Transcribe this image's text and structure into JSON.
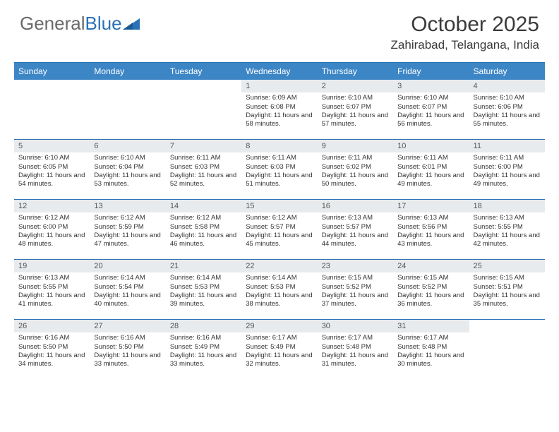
{
  "logo": {
    "word1": "General",
    "word2": "Blue"
  },
  "title": "October 2025",
  "location": "Zahirabad, Telangana, India",
  "colors": {
    "header_bg": "#3d86c6",
    "border": "#2a72b5",
    "date_bg": "#e8ebed",
    "logo_gray": "#6a6a6a",
    "logo_blue": "#2a72b5"
  },
  "day_names": [
    "Sunday",
    "Monday",
    "Tuesday",
    "Wednesday",
    "Thursday",
    "Friday",
    "Saturday"
  ],
  "weeks": [
    [
      {
        "blank": true
      },
      {
        "blank": true
      },
      {
        "blank": true
      },
      {
        "date": "1",
        "sunrise": "Sunrise: 6:09 AM",
        "sunset": "Sunset: 6:08 PM",
        "daylight": "Daylight: 11 hours and 58 minutes."
      },
      {
        "date": "2",
        "sunrise": "Sunrise: 6:10 AM",
        "sunset": "Sunset: 6:07 PM",
        "daylight": "Daylight: 11 hours and 57 minutes."
      },
      {
        "date": "3",
        "sunrise": "Sunrise: 6:10 AM",
        "sunset": "Sunset: 6:07 PM",
        "daylight": "Daylight: 11 hours and 56 minutes."
      },
      {
        "date": "4",
        "sunrise": "Sunrise: 6:10 AM",
        "sunset": "Sunset: 6:06 PM",
        "daylight": "Daylight: 11 hours and 55 minutes."
      }
    ],
    [
      {
        "date": "5",
        "sunrise": "Sunrise: 6:10 AM",
        "sunset": "Sunset: 6:05 PM",
        "daylight": "Daylight: 11 hours and 54 minutes."
      },
      {
        "date": "6",
        "sunrise": "Sunrise: 6:10 AM",
        "sunset": "Sunset: 6:04 PM",
        "daylight": "Daylight: 11 hours and 53 minutes."
      },
      {
        "date": "7",
        "sunrise": "Sunrise: 6:11 AM",
        "sunset": "Sunset: 6:03 PM",
        "daylight": "Daylight: 11 hours and 52 minutes."
      },
      {
        "date": "8",
        "sunrise": "Sunrise: 6:11 AM",
        "sunset": "Sunset: 6:03 PM",
        "daylight": "Daylight: 11 hours and 51 minutes."
      },
      {
        "date": "9",
        "sunrise": "Sunrise: 6:11 AM",
        "sunset": "Sunset: 6:02 PM",
        "daylight": "Daylight: 11 hours and 50 minutes."
      },
      {
        "date": "10",
        "sunrise": "Sunrise: 6:11 AM",
        "sunset": "Sunset: 6:01 PM",
        "daylight": "Daylight: 11 hours and 49 minutes."
      },
      {
        "date": "11",
        "sunrise": "Sunrise: 6:11 AM",
        "sunset": "Sunset: 6:00 PM",
        "daylight": "Daylight: 11 hours and 49 minutes."
      }
    ],
    [
      {
        "date": "12",
        "sunrise": "Sunrise: 6:12 AM",
        "sunset": "Sunset: 6:00 PM",
        "daylight": "Daylight: 11 hours and 48 minutes."
      },
      {
        "date": "13",
        "sunrise": "Sunrise: 6:12 AM",
        "sunset": "Sunset: 5:59 PM",
        "daylight": "Daylight: 11 hours and 47 minutes."
      },
      {
        "date": "14",
        "sunrise": "Sunrise: 6:12 AM",
        "sunset": "Sunset: 5:58 PM",
        "daylight": "Daylight: 11 hours and 46 minutes."
      },
      {
        "date": "15",
        "sunrise": "Sunrise: 6:12 AM",
        "sunset": "Sunset: 5:57 PM",
        "daylight": "Daylight: 11 hours and 45 minutes."
      },
      {
        "date": "16",
        "sunrise": "Sunrise: 6:13 AM",
        "sunset": "Sunset: 5:57 PM",
        "daylight": "Daylight: 11 hours and 44 minutes."
      },
      {
        "date": "17",
        "sunrise": "Sunrise: 6:13 AM",
        "sunset": "Sunset: 5:56 PM",
        "daylight": "Daylight: 11 hours and 43 minutes."
      },
      {
        "date": "18",
        "sunrise": "Sunrise: 6:13 AM",
        "sunset": "Sunset: 5:55 PM",
        "daylight": "Daylight: 11 hours and 42 minutes."
      }
    ],
    [
      {
        "date": "19",
        "sunrise": "Sunrise: 6:13 AM",
        "sunset": "Sunset: 5:55 PM",
        "daylight": "Daylight: 11 hours and 41 minutes."
      },
      {
        "date": "20",
        "sunrise": "Sunrise: 6:14 AM",
        "sunset": "Sunset: 5:54 PM",
        "daylight": "Daylight: 11 hours and 40 minutes."
      },
      {
        "date": "21",
        "sunrise": "Sunrise: 6:14 AM",
        "sunset": "Sunset: 5:53 PM",
        "daylight": "Daylight: 11 hours and 39 minutes."
      },
      {
        "date": "22",
        "sunrise": "Sunrise: 6:14 AM",
        "sunset": "Sunset: 5:53 PM",
        "daylight": "Daylight: 11 hours and 38 minutes."
      },
      {
        "date": "23",
        "sunrise": "Sunrise: 6:15 AM",
        "sunset": "Sunset: 5:52 PM",
        "daylight": "Daylight: 11 hours and 37 minutes."
      },
      {
        "date": "24",
        "sunrise": "Sunrise: 6:15 AM",
        "sunset": "Sunset: 5:52 PM",
        "daylight": "Daylight: 11 hours and 36 minutes."
      },
      {
        "date": "25",
        "sunrise": "Sunrise: 6:15 AM",
        "sunset": "Sunset: 5:51 PM",
        "daylight": "Daylight: 11 hours and 35 minutes."
      }
    ],
    [
      {
        "date": "26",
        "sunrise": "Sunrise: 6:16 AM",
        "sunset": "Sunset: 5:50 PM",
        "daylight": "Daylight: 11 hours and 34 minutes."
      },
      {
        "date": "27",
        "sunrise": "Sunrise: 6:16 AM",
        "sunset": "Sunset: 5:50 PM",
        "daylight": "Daylight: 11 hours and 33 minutes."
      },
      {
        "date": "28",
        "sunrise": "Sunrise: 6:16 AM",
        "sunset": "Sunset: 5:49 PM",
        "daylight": "Daylight: 11 hours and 33 minutes."
      },
      {
        "date": "29",
        "sunrise": "Sunrise: 6:17 AM",
        "sunset": "Sunset: 5:49 PM",
        "daylight": "Daylight: 11 hours and 32 minutes."
      },
      {
        "date": "30",
        "sunrise": "Sunrise: 6:17 AM",
        "sunset": "Sunset: 5:48 PM",
        "daylight": "Daylight: 11 hours and 31 minutes."
      },
      {
        "date": "31",
        "sunrise": "Sunrise: 6:17 AM",
        "sunset": "Sunset: 5:48 PM",
        "daylight": "Daylight: 11 hours and 30 minutes."
      },
      {
        "blank": true
      }
    ]
  ]
}
